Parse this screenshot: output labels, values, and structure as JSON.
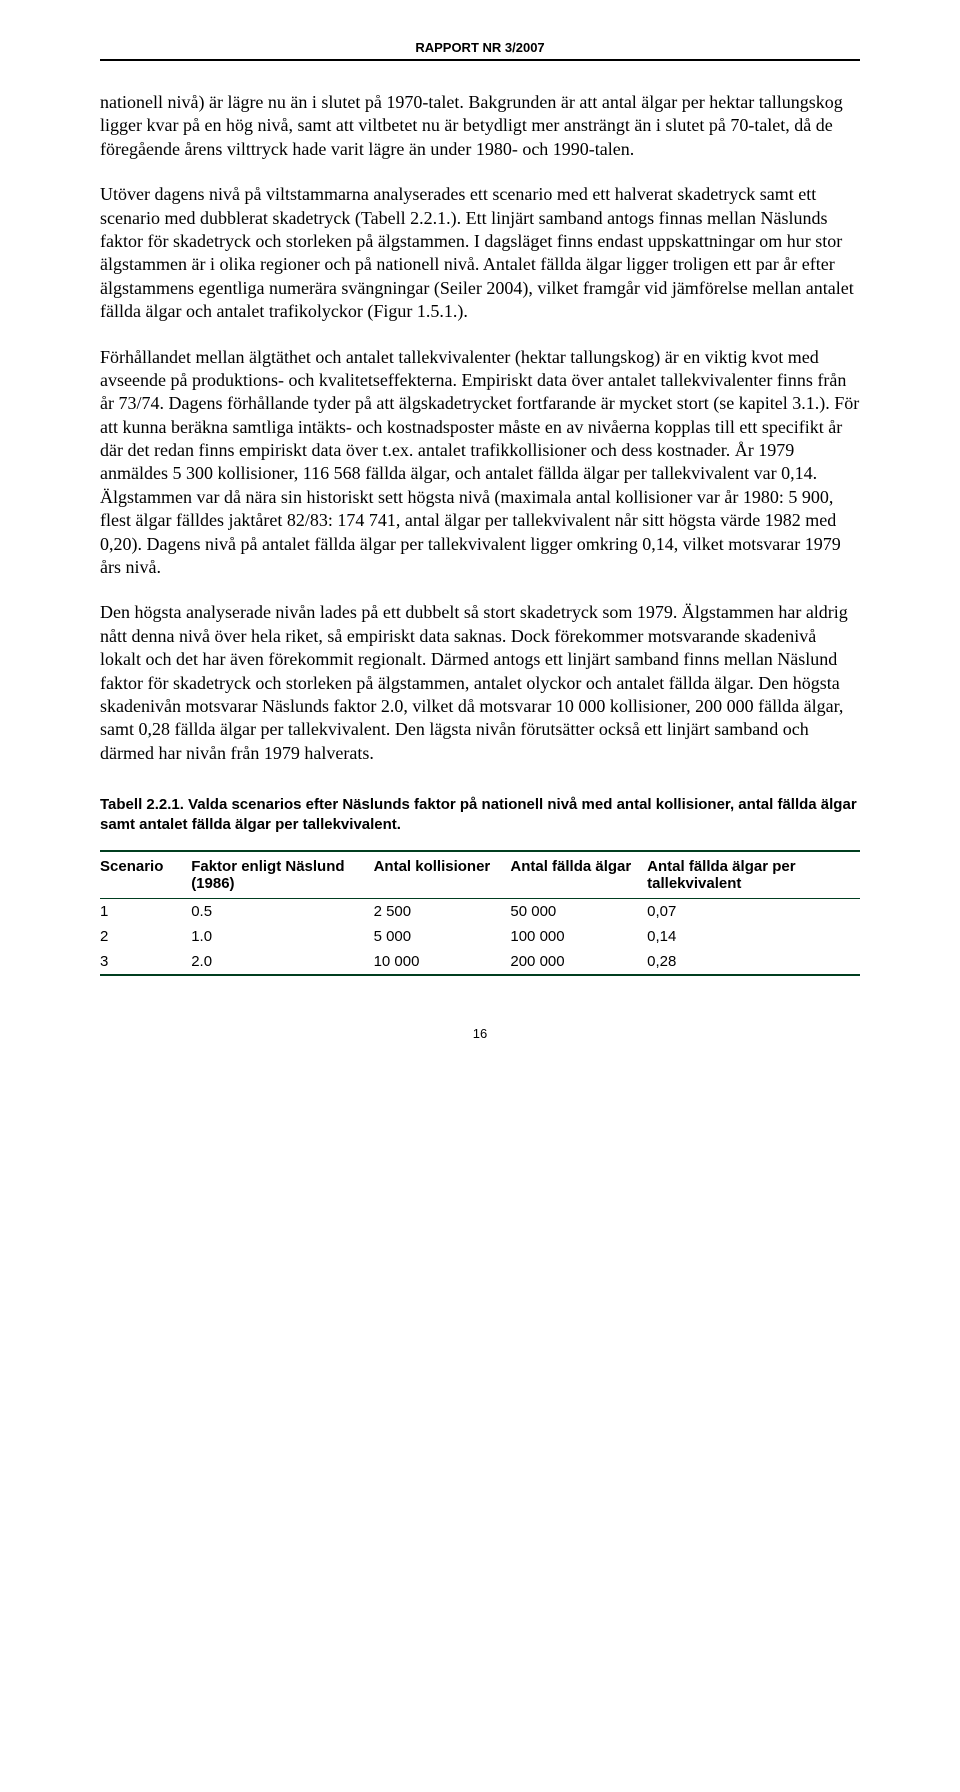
{
  "header": "RAPPORT NR 3/2007",
  "paragraphs": [
    "nationell nivå) är lägre nu än i slutet på 1970-talet. Bakgrunden är att antal älgar per hektar tallungskog ligger kvar på en hög nivå, samt att viltbetet nu är betydligt mer ansträngt än i slutet på 70-talet, då de föregående årens vilttryck hade varit lägre än under 1980- och 1990-talen.",
    "Utöver dagens nivå på viltstammarna analyserades ett scenario med ett halverat skadetryck samt ett scenario med dubblerat skadetryck (Tabell 2.2.1.). Ett linjärt samband antogs finnas mellan Näslunds faktor för skadetryck och storleken på älgstammen. I dagsläget finns endast uppskattningar om hur stor älgstammen är i olika regioner och på nationell nivå. Antalet fällda älgar ligger troligen ett par år efter älgstammens egentliga numerära svängningar (Seiler 2004), vilket framgår vid jämförelse mellan antalet fällda älgar och antalet trafikolyckor (Figur 1.5.1.).",
    "Förhållandet mellan älgtäthet och antalet tallekvivalenter (hektar tallungskog) är en viktig kvot med avseende på produktions- och kvalitetseffekterna. Empiriskt data över antalet tallekvivalenter finns från år 73/74. Dagens förhållande tyder på att älgskadetrycket fortfarande är mycket stort (se kapitel 3.1.). För att kunna beräkna samtliga intäkts- och kostnadsposter måste en av nivåerna kopplas till ett specifikt år där det redan finns empiriskt data över t.ex. antalet trafikkollisioner och dess kostnader. År 1979 anmäldes 5 300 kollisioner, 116 568 fällda älgar, och antalet fällda älgar per tallekvivalent var 0,14. Älgstammen var då nära sin historiskt sett högsta nivå (maximala antal kollisioner var år 1980: 5 900, flest älgar fälldes jaktåret 82/83: 174 741, antal älgar per tallekvivalent når sitt högsta värde 1982 med 0,20). Dagens nivå på antalet fällda älgar per tallekvivalent ligger omkring 0,14, vilket motsvarar 1979 års nivå.",
    "Den högsta analyserade nivån lades på ett dubbelt så stort skadetryck som 1979. Älgstammen har aldrig nått denna nivå över hela riket, så empiriskt data saknas. Dock förekommer motsvarande skadenivå lokalt och det har även förekommit regionalt. Därmed antogs ett linjärt samband finns mellan Näslund faktor för skadetryck och storleken på älgstammen, antalet olyckor och antalet fällda älgar. Den högsta skadenivån motsvarar Näslunds faktor 2.0, vilket då motsvarar 10 000 kollisioner, 200 000 fällda älgar, samt 0,28 fällda älgar per tallekvivalent. Den lägsta nivån förutsätter också ett linjärt samband och därmed har nivån från 1979 halverats."
  ],
  "table": {
    "caption": "Tabell 2.2.1. Valda scenarios efter Näslunds faktor på nationell nivå med antal kollisioner, antal fällda älgar samt antalet fällda älgar per tallekvivalent.",
    "columns": [
      "Scenario",
      "Faktor enligt Näslund (1986)",
      "Antal kollisioner",
      "Antal fällda älgar",
      "Antal fällda älgar per tallekvivalent"
    ],
    "rows": [
      [
        "1",
        "0.5",
        "2 500",
        "50 000",
        "0,07"
      ],
      [
        "2",
        "1.0",
        "5 000",
        "100 000",
        "0,14"
      ],
      [
        "3",
        "2.0",
        "10 000",
        "200 000",
        "0,28"
      ]
    ],
    "border_color": "#003d1f",
    "col_widths": [
      "12%",
      "24%",
      "18%",
      "18%",
      "28%"
    ]
  },
  "page_number": "16"
}
